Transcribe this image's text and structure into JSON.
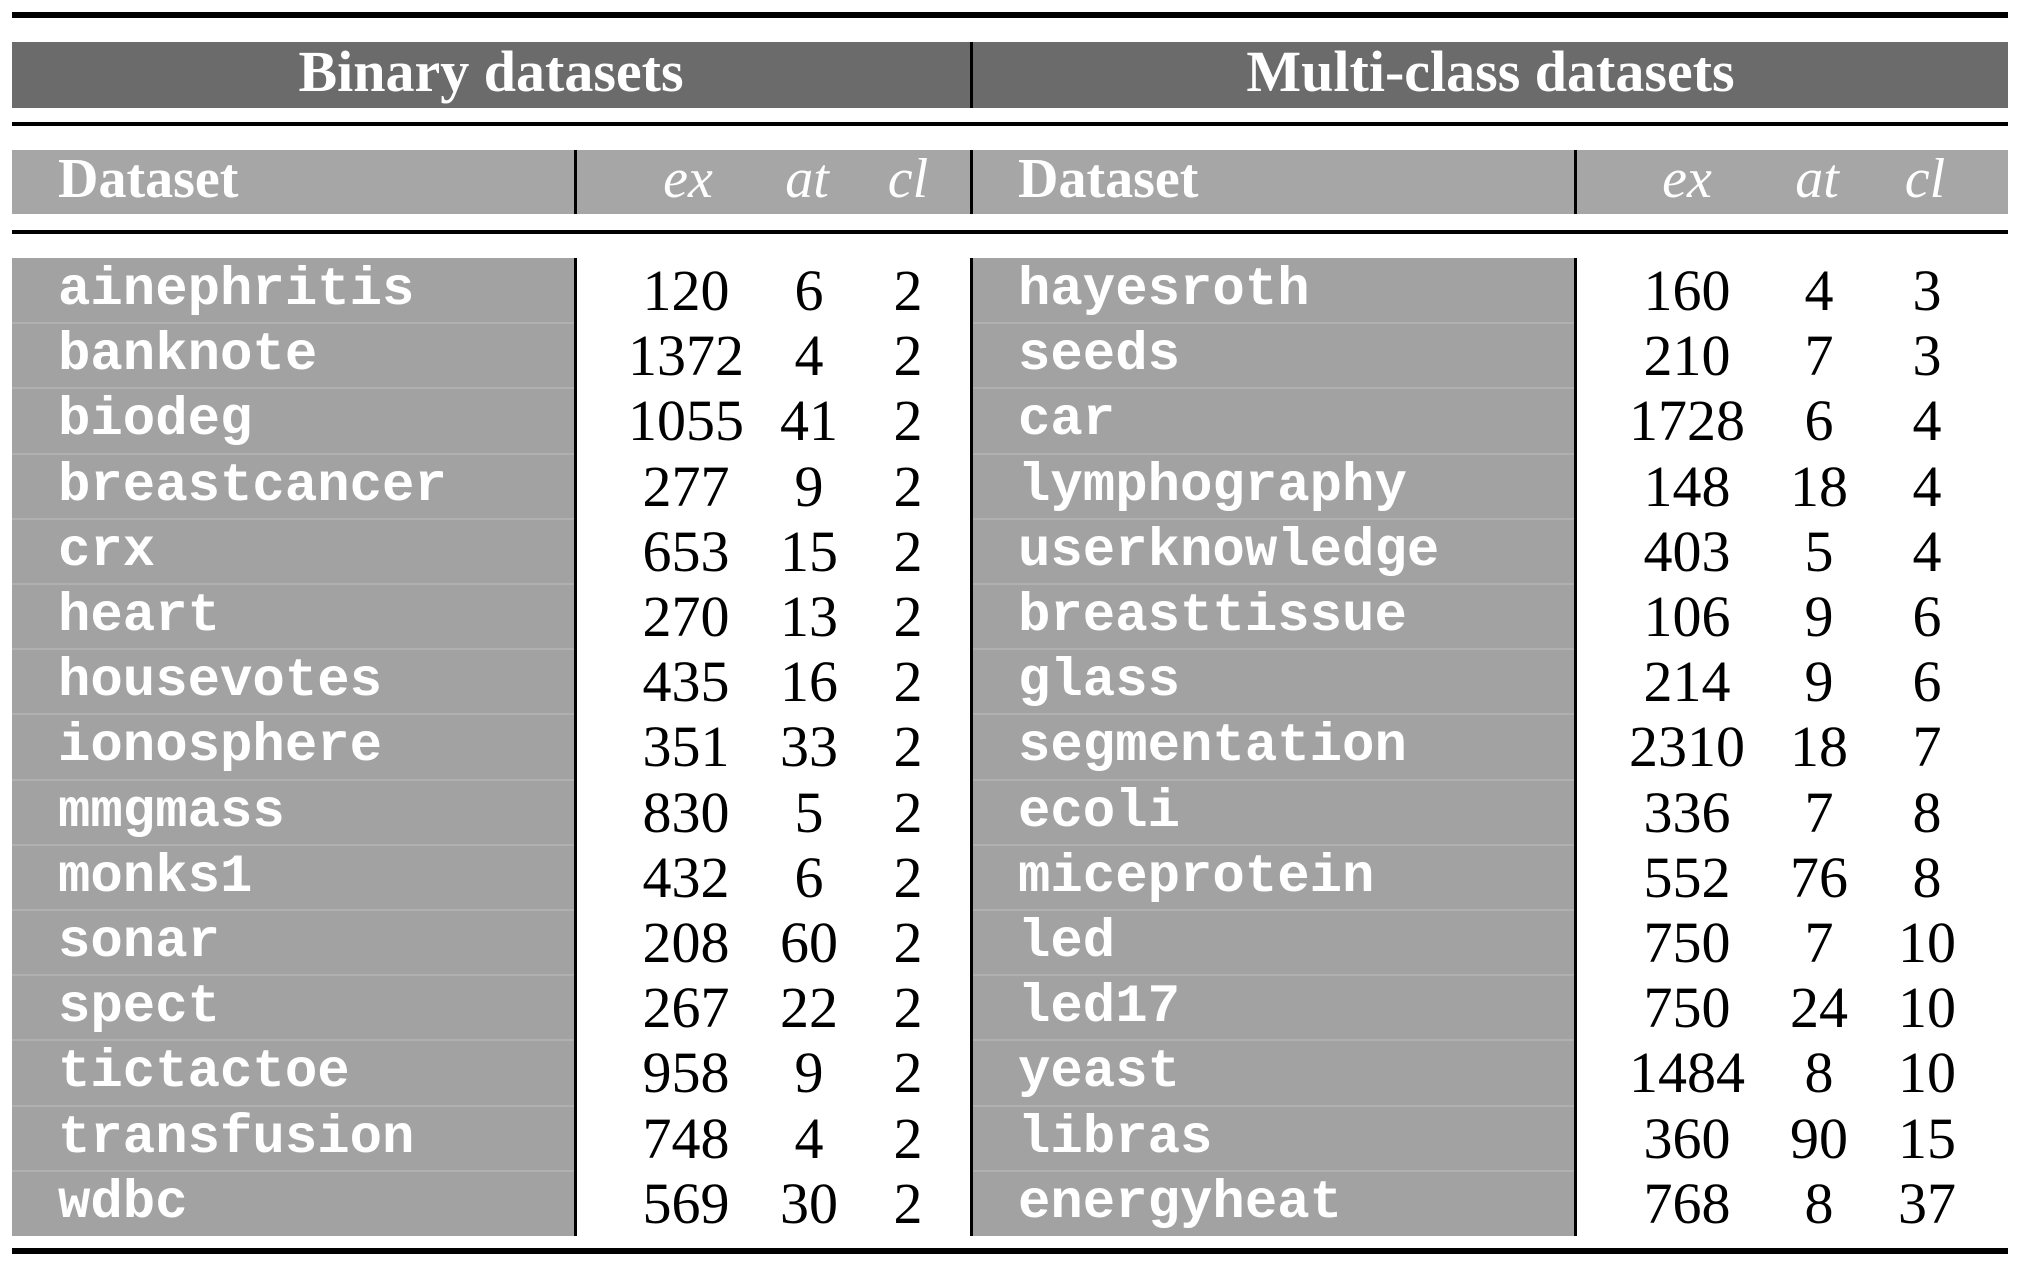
{
  "headers": {
    "binary_title": "Binary datasets",
    "multi_title": "Multi-class datasets",
    "dataset": "Dataset",
    "ex": "ex",
    "at": "at",
    "cl": "cl"
  },
  "binary": [
    {
      "name": "ainephritis",
      "ex": "120",
      "at": "6",
      "cl": "2"
    },
    {
      "name": "banknote",
      "ex": "1372",
      "at": "4",
      "cl": "2"
    },
    {
      "name": "biodeg",
      "ex": "1055",
      "at": "41",
      "cl": "2"
    },
    {
      "name": "breastcancer",
      "ex": "277",
      "at": "9",
      "cl": "2"
    },
    {
      "name": "crx",
      "ex": "653",
      "at": "15",
      "cl": "2"
    },
    {
      "name": "heart",
      "ex": "270",
      "at": "13",
      "cl": "2"
    },
    {
      "name": "housevotes",
      "ex": "435",
      "at": "16",
      "cl": "2"
    },
    {
      "name": "ionosphere",
      "ex": "351",
      "at": "33",
      "cl": "2"
    },
    {
      "name": "mmgmass",
      "ex": "830",
      "at": "5",
      "cl": "2"
    },
    {
      "name": "monks1",
      "ex": "432",
      "at": "6",
      "cl": "2"
    },
    {
      "name": "sonar",
      "ex": "208",
      "at": "60",
      "cl": "2"
    },
    {
      "name": "spect",
      "ex": "267",
      "at": "22",
      "cl": "2"
    },
    {
      "name": "tictactoe",
      "ex": "958",
      "at": "9",
      "cl": "2"
    },
    {
      "name": "transfusion",
      "ex": "748",
      "at": "4",
      "cl": "2"
    },
    {
      "name": "wdbc",
      "ex": "569",
      "at": "30",
      "cl": "2"
    }
  ],
  "multiclass": [
    {
      "name": "hayesroth",
      "ex": "160",
      "at": "4",
      "cl": "3"
    },
    {
      "name": "seeds",
      "ex": "210",
      "at": "7",
      "cl": "3"
    },
    {
      "name": "car",
      "ex": "1728",
      "at": "6",
      "cl": "4"
    },
    {
      "name": "lymphography",
      "ex": "148",
      "at": "18",
      "cl": "4"
    },
    {
      "name": "userknowledge",
      "ex": "403",
      "at": "5",
      "cl": "4"
    },
    {
      "name": "breasttissue",
      "ex": "106",
      "at": "9",
      "cl": "6"
    },
    {
      "name": "glass",
      "ex": "214",
      "at": "9",
      "cl": "6"
    },
    {
      "name": "segmentation",
      "ex": "2310",
      "at": "18",
      "cl": "7"
    },
    {
      "name": "ecoli",
      "ex": "336",
      "at": "7",
      "cl": "8"
    },
    {
      "name": "miceprotein",
      "ex": "552",
      "at": "76",
      "cl": "8"
    },
    {
      "name": "led",
      "ex": "750",
      "at": "7",
      "cl": "10"
    },
    {
      "name": "led17",
      "ex": "750",
      "at": "24",
      "cl": "10"
    },
    {
      "name": "yeast",
      "ex": "1484",
      "at": "8",
      "cl": "10"
    },
    {
      "name": "libras",
      "ex": "360",
      "at": "90",
      "cl": "15"
    },
    {
      "name": "energyheat",
      "ex": "768",
      "at": "8",
      "cl": "37"
    }
  ]
}
